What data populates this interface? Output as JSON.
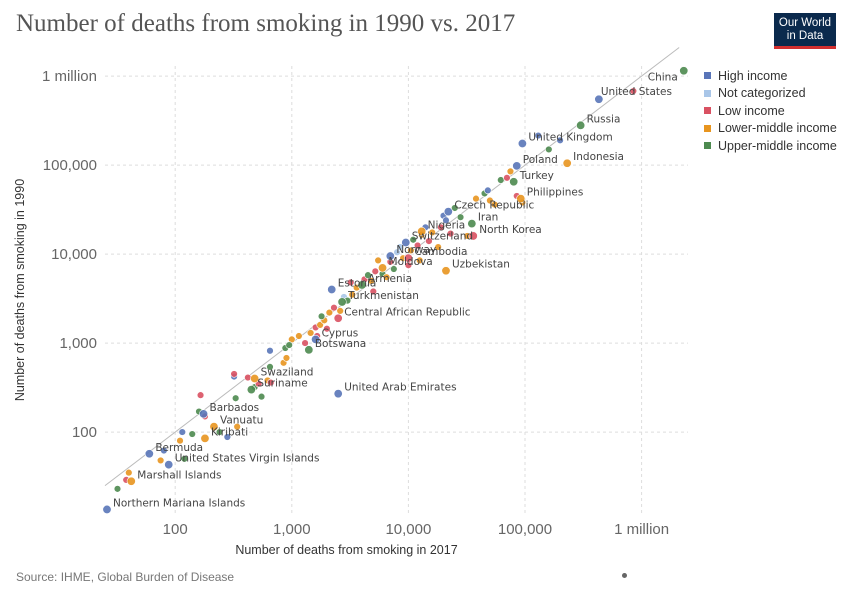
{
  "title": "Number of deaths from smoking in 1990 vs. 2017",
  "logo": {
    "line1": "Our World",
    "line2": "in Data"
  },
  "source": "Source: IHME, Global Burden of Disease",
  "legend": [
    {
      "name": "High income",
      "color": "#5975b8"
    },
    {
      "name": "Not categorized",
      "color": "#a9c6e8"
    },
    {
      "name": "Low income",
      "color": "#d95162"
    },
    {
      "name": "Lower-middle income",
      "color": "#e8951f"
    },
    {
      "name": "Upper-middle income",
      "color": "#4d8a4f"
    }
  ],
  "chart_data": {
    "type": "scatter",
    "title": "Number of deaths from smoking in 1990 vs. 2017",
    "xlabel": "Number of deaths from smoking in 2017",
    "ylabel": "Number of deaths from smoking in 1990",
    "xscale": "log",
    "yscale": "log",
    "xlim": [
      25,
      2500000
    ],
    "ylim": [
      12,
      1300000
    ],
    "x_ticks": [
      {
        "v": 100,
        "label": "100"
      },
      {
        "v": 1000,
        "label": "1,000"
      },
      {
        "v": 10000,
        "label": "10,000"
      },
      {
        "v": 100000,
        "label": "100,000"
      },
      {
        "v": 1000000,
        "label": "1 million"
      }
    ],
    "y_ticks": [
      {
        "v": 100,
        "label": "100"
      },
      {
        "v": 1000,
        "label": "1,000"
      },
      {
        "v": 10000,
        "label": "10,000"
      },
      {
        "v": 100000,
        "label": "100,000"
      },
      {
        "v": 1000000,
        "label": "1 million"
      }
    ],
    "grid": true,
    "legend_position": "top-right",
    "labeled_points": [
      {
        "name": "China",
        "x": 2300000,
        "y": 1150000,
        "group": "Upper-middle income"
      },
      {
        "name": "United States",
        "x": 430000,
        "y": 550000,
        "group": "High income"
      },
      {
        "name": "Russia",
        "x": 300000,
        "y": 280000,
        "group": "Upper-middle income"
      },
      {
        "name": "United Kingdom",
        "x": 95000,
        "y": 175000,
        "group": "High income"
      },
      {
        "name": "Indonesia",
        "x": 230000,
        "y": 105000,
        "group": "Lower-middle income"
      },
      {
        "name": "Poland",
        "x": 85000,
        "y": 98000,
        "group": "High income"
      },
      {
        "name": "Turkey",
        "x": 80000,
        "y": 65000,
        "group": "Upper-middle income"
      },
      {
        "name": "Philippines",
        "x": 92000,
        "y": 42000,
        "group": "Lower-middle income"
      },
      {
        "name": "Czech Republic",
        "x": 22000,
        "y": 30000,
        "group": "High income"
      },
      {
        "name": "Iran",
        "x": 35000,
        "y": 22000,
        "group": "Upper-middle income"
      },
      {
        "name": "Nigeria",
        "x": 13000,
        "y": 18000,
        "group": "Lower-middle income"
      },
      {
        "name": "North Korea",
        "x": 36000,
        "y": 16000,
        "group": "Low income"
      },
      {
        "name": "Switzerland",
        "x": 9500,
        "y": 13500,
        "group": "High income"
      },
      {
        "name": "Norway",
        "x": 7000,
        "y": 9500,
        "group": "High income"
      },
      {
        "name": "Cambodia",
        "x": 10000,
        "y": 9000,
        "group": "Low income"
      },
      {
        "name": "Moldova",
        "x": 6000,
        "y": 7000,
        "group": "Lower-middle income"
      },
      {
        "name": "Uzbekistan",
        "x": 21000,
        "y": 6500,
        "group": "Lower-middle income"
      },
      {
        "name": "Estonia",
        "x": 2200,
        "y": 4000,
        "group": "High income"
      },
      {
        "name": "Armenia",
        "x": 4000,
        "y": 4500,
        "group": "Upper-middle income"
      },
      {
        "name": "Turkmenistan",
        "x": 2700,
        "y": 2900,
        "group": "Upper-middle income"
      },
      {
        "name": "Central African Republic",
        "x": 2500,
        "y": 1900,
        "group": "Low income"
      },
      {
        "name": "Cyprus",
        "x": 1600,
        "y": 1100,
        "group": "High income"
      },
      {
        "name": "Botswana",
        "x": 1400,
        "y": 840,
        "group": "Upper-middle income"
      },
      {
        "name": "Swaziland",
        "x": 480,
        "y": 400,
        "group": "Lower-middle income"
      },
      {
        "name": "Suriname",
        "x": 450,
        "y": 300,
        "group": "Upper-middle income"
      },
      {
        "name": "United Arab Emirates",
        "x": 2500,
        "y": 270,
        "group": "High income"
      },
      {
        "name": "Barbados",
        "x": 175,
        "y": 160,
        "group": "High income"
      },
      {
        "name": "Vanuatu",
        "x": 215,
        "y": 115,
        "group": "Lower-middle income"
      },
      {
        "name": "Kiribati",
        "x": 180,
        "y": 85,
        "group": "Lower-middle income"
      },
      {
        "name": "Bermuda",
        "x": 60,
        "y": 57,
        "group": "High income"
      },
      {
        "name": "United States Virgin Islands",
        "x": 88,
        "y": 43,
        "group": "High income"
      },
      {
        "name": "Marshall Islands",
        "x": 42,
        "y": 28,
        "group": "Lower-middle income"
      },
      {
        "name": "Northern Mariana Islands",
        "x": 26,
        "y": 13.5,
        "group": "High income"
      }
    ],
    "points": [
      {
        "x": 40,
        "y": 35,
        "group": "Lower-middle income"
      },
      {
        "x": 32,
        "y": 23,
        "group": "Upper-middle income"
      },
      {
        "x": 38,
        "y": 29,
        "group": "Low income"
      },
      {
        "x": 75,
        "y": 48,
        "group": "Lower-middle income"
      },
      {
        "x": 80,
        "y": 62,
        "group": "High income"
      },
      {
        "x": 120,
        "y": 50,
        "group": "Upper-middle income"
      },
      {
        "x": 110,
        "y": 80,
        "group": "Lower-middle income"
      },
      {
        "x": 115,
        "y": 100,
        "group": "High income"
      },
      {
        "x": 140,
        "y": 95,
        "group": "Upper-middle income"
      },
      {
        "x": 165,
        "y": 260,
        "group": "Low income"
      },
      {
        "x": 180,
        "y": 150,
        "group": "Low income"
      },
      {
        "x": 160,
        "y": 170,
        "group": "Upper-middle income"
      },
      {
        "x": 240,
        "y": 100,
        "group": "Upper-middle income"
      },
      {
        "x": 280,
        "y": 88,
        "group": "High income"
      },
      {
        "x": 340,
        "y": 115,
        "group": "Lower-middle income"
      },
      {
        "x": 320,
        "y": 420,
        "group": "High income"
      },
      {
        "x": 320,
        "y": 450,
        "group": "Low income"
      },
      {
        "x": 420,
        "y": 410,
        "group": "Low income"
      },
      {
        "x": 330,
        "y": 240,
        "group": "Upper-middle income"
      },
      {
        "x": 480,
        "y": 320,
        "group": "Upper-middle income"
      },
      {
        "x": 520,
        "y": 350,
        "group": "Low income"
      },
      {
        "x": 620,
        "y": 380,
        "group": "Lower-middle income"
      },
      {
        "x": 660,
        "y": 360,
        "group": "Low income"
      },
      {
        "x": 550,
        "y": 250,
        "group": "Upper-middle income"
      },
      {
        "x": 650,
        "y": 540,
        "group": "Upper-middle income"
      },
      {
        "x": 650,
        "y": 820,
        "group": "High income"
      },
      {
        "x": 850,
        "y": 600,
        "group": "Lower-middle income"
      },
      {
        "x": 900,
        "y": 680,
        "group": "Lower-middle income"
      },
      {
        "x": 880,
        "y": 880,
        "group": "Upper-middle income"
      },
      {
        "x": 1000,
        "y": 1100,
        "group": "Lower-middle income"
      },
      {
        "x": 950,
        "y": 950,
        "group": "Upper-middle income"
      },
      {
        "x": 1150,
        "y": 1200,
        "group": "Lower-middle income"
      },
      {
        "x": 1300,
        "y": 1000,
        "group": "Low income"
      },
      {
        "x": 1450,
        "y": 1300,
        "group": "Lower-middle income"
      },
      {
        "x": 1600,
        "y": 1500,
        "group": "Low income"
      },
      {
        "x": 1750,
        "y": 1600,
        "group": "Lower-middle income"
      },
      {
        "x": 1650,
        "y": 1200,
        "group": "Low income"
      },
      {
        "x": 1900,
        "y": 1800,
        "group": "Lower-middle income"
      },
      {
        "x": 2000,
        "y": 1450,
        "group": "Low income"
      },
      {
        "x": 1800,
        "y": 2000,
        "group": "Upper-middle income"
      },
      {
        "x": 2100,
        "y": 2200,
        "group": "Lower-middle income"
      },
      {
        "x": 2300,
        "y": 2500,
        "group": "Low income"
      },
      {
        "x": 2600,
        "y": 2300,
        "group": "Lower-middle income"
      },
      {
        "x": 2800,
        "y": 3300,
        "group": "Not categorized"
      },
      {
        "x": 3000,
        "y": 3000,
        "group": "Upper-middle income"
      },
      {
        "x": 3300,
        "y": 3500,
        "group": "Lower-middle income"
      },
      {
        "x": 3200,
        "y": 4800,
        "group": "Low income"
      },
      {
        "x": 3600,
        "y": 4200,
        "group": "Lower-middle income"
      },
      {
        "x": 4200,
        "y": 5200,
        "group": "Low income"
      },
      {
        "x": 4500,
        "y": 5800,
        "group": "Upper-middle income"
      },
      {
        "x": 4800,
        "y": 5000,
        "group": "Lower-middle income"
      },
      {
        "x": 5000,
        "y": 3800,
        "group": "Low income"
      },
      {
        "x": 5200,
        "y": 6400,
        "group": "Low income"
      },
      {
        "x": 5500,
        "y": 8500,
        "group": "Lower-middle income"
      },
      {
        "x": 6000,
        "y": 6000,
        "group": "Upper-middle income"
      },
      {
        "x": 6500,
        "y": 5500,
        "group": "Lower-middle income"
      },
      {
        "x": 7000,
        "y": 8200,
        "group": "Low income"
      },
      {
        "x": 7500,
        "y": 6800,
        "group": "Upper-middle income"
      },
      {
        "x": 8000,
        "y": 10500,
        "group": "Not categorized"
      },
      {
        "x": 8500,
        "y": 12000,
        "group": "Not categorized"
      },
      {
        "x": 9000,
        "y": 9000,
        "group": "Lower-middle income"
      },
      {
        "x": 10000,
        "y": 7500,
        "group": "Low income"
      },
      {
        "x": 10500,
        "y": 11000,
        "group": "Lower-middle income"
      },
      {
        "x": 11000,
        "y": 14500,
        "group": "Upper-middle income"
      },
      {
        "x": 12000,
        "y": 12500,
        "group": "Low income"
      },
      {
        "x": 12500,
        "y": 8500,
        "group": "Lower-middle income"
      },
      {
        "x": 13000,
        "y": 16500,
        "group": "Lower-middle income"
      },
      {
        "x": 14000,
        "y": 20000,
        "group": "High income"
      },
      {
        "x": 15000,
        "y": 14000,
        "group": "Low income"
      },
      {
        "x": 16000,
        "y": 17500,
        "group": "Lower-middle income"
      },
      {
        "x": 18000,
        "y": 12000,
        "group": "Lower-middle income"
      },
      {
        "x": 19000,
        "y": 20000,
        "group": "Low income"
      },
      {
        "x": 20000,
        "y": 27000,
        "group": "High income"
      },
      {
        "x": 21000,
        "y": 24000,
        "group": "High income"
      },
      {
        "x": 23000,
        "y": 17000,
        "group": "Low income"
      },
      {
        "x": 25000,
        "y": 33000,
        "group": "Upper-middle income"
      },
      {
        "x": 28000,
        "y": 26000,
        "group": "Upper-middle income"
      },
      {
        "x": 32000,
        "y": 16000,
        "group": "Lower-middle income"
      },
      {
        "x": 38000,
        "y": 42000,
        "group": "Lower-middle income"
      },
      {
        "x": 45000,
        "y": 48000,
        "group": "Upper-middle income"
      },
      {
        "x": 48000,
        "y": 52000,
        "group": "High income"
      },
      {
        "x": 50000,
        "y": 40000,
        "group": "Lower-middle income"
      },
      {
        "x": 55000,
        "y": 36000,
        "group": "Lower-middle income"
      },
      {
        "x": 62000,
        "y": 68000,
        "group": "Upper-middle income"
      },
      {
        "x": 70000,
        "y": 72000,
        "group": "Low income"
      },
      {
        "x": 75000,
        "y": 85000,
        "group": "Lower-middle income"
      },
      {
        "x": 85000,
        "y": 45000,
        "group": "Low income"
      },
      {
        "x": 95000,
        "y": 38000,
        "group": "Lower-middle income"
      },
      {
        "x": 130000,
        "y": 215000,
        "group": "High income"
      },
      {
        "x": 160000,
        "y": 150000,
        "group": "Upper-middle income"
      },
      {
        "x": 200000,
        "y": 190000,
        "group": "High income"
      },
      {
        "x": 850000,
        "y": 680000,
        "group": "Low income"
      }
    ]
  }
}
